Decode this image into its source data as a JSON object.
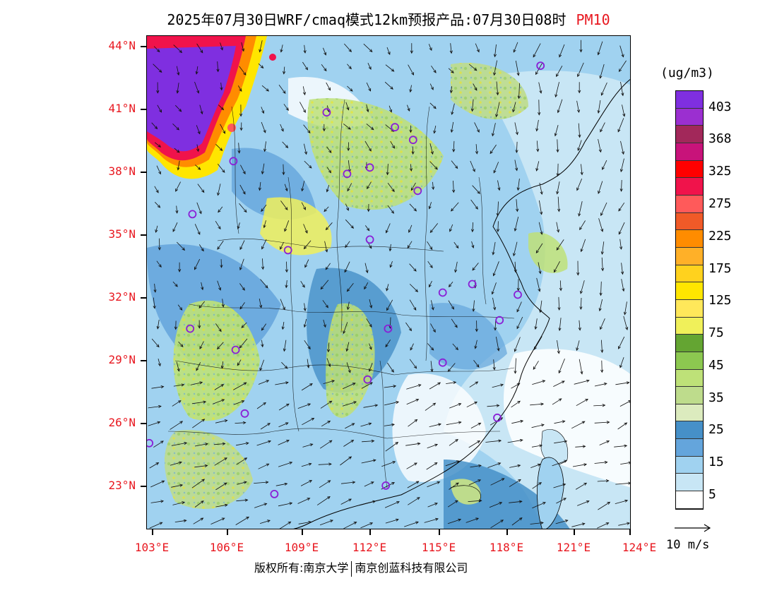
{
  "title": {
    "main": "2025年07月30日WRF/cmaq模式12km预报产品:07月30日08时",
    "pollutant": "PM10"
  },
  "map": {
    "lat_labels": [
      "44°N",
      "41°N",
      "38°N",
      "35°N",
      "32°N",
      "29°N",
      "26°N",
      "23°N"
    ],
    "lon_labels": [
      "103°E",
      "106°E",
      "109°E",
      "112°E",
      "115°E",
      "118°E",
      "121°E",
      "124°E"
    ],
    "extent": {
      "lon_min": 102.7,
      "lon_max": 124.0,
      "lat_min": 21.1,
      "lat_max": 44.4
    },
    "city_markers": [
      [
        120.0,
        43.0
      ],
      [
        110.6,
        40.8
      ],
      [
        113.6,
        40.1
      ],
      [
        114.4,
        39.5
      ],
      [
        111.5,
        37.9
      ],
      [
        112.5,
        38.2
      ],
      [
        114.6,
        37.1
      ],
      [
        106.5,
        38.5
      ],
      [
        104.7,
        36.0
      ],
      [
        112.5,
        34.8
      ],
      [
        108.9,
        34.3
      ],
      [
        117.0,
        32.7
      ],
      [
        115.7,
        32.3
      ],
      [
        119.0,
        32.2
      ],
      [
        118.2,
        31.0
      ],
      [
        113.3,
        30.6
      ],
      [
        104.6,
        30.6
      ],
      [
        106.6,
        29.6
      ],
      [
        115.7,
        29.0
      ],
      [
        112.4,
        28.2
      ],
      [
        107.0,
        26.6
      ],
      [
        118.1,
        26.4
      ],
      [
        102.8,
        25.2
      ],
      [
        113.2,
        23.2
      ],
      [
        108.3,
        22.8
      ]
    ]
  },
  "legend": {
    "unit": "(ug/m3)",
    "levels": [
      "403",
      "368",
      "325",
      "275",
      "225",
      "175",
      "125",
      "75",
      "45",
      "35",
      "25",
      "15",
      "5"
    ],
    "colors": [
      "#7f2fe0",
      "#9b2fd0",
      "#a2285a",
      "#c8137a",
      "#ff0000",
      "#f0134b",
      "#ff5a5a",
      "#f05a28",
      "#ff8c00",
      "#ffb028",
      "#ffd21e",
      "#ffe600",
      "#ffe85a",
      "#f0f05a",
      "#64a532",
      "#8cc850",
      "#bee178",
      "#bedc8c",
      "#dcebbe",
      "#4690c8",
      "#64a5dc",
      "#a0d2f0",
      "#c8e6f5",
      "#ffffff"
    ]
  },
  "wind_reference": {
    "label": "10 m/s"
  },
  "footer": {
    "left": "版权所有:南京大学",
    "right": "南京创蓝科技有限公司"
  }
}
